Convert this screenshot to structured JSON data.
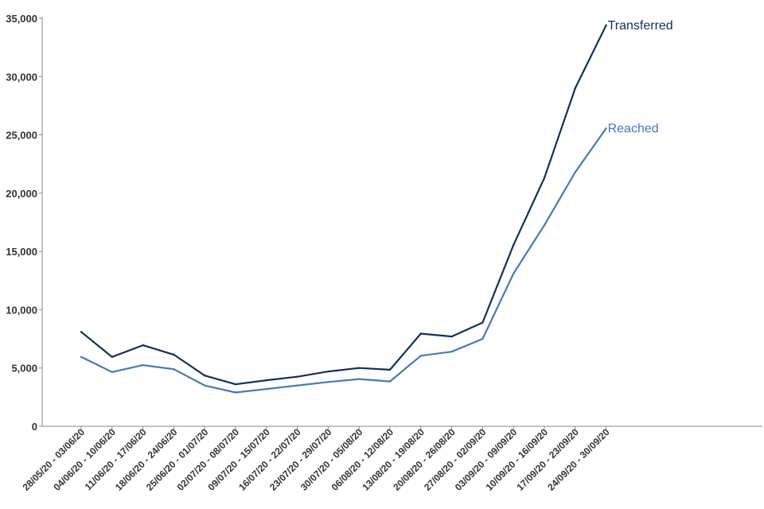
{
  "chart_data": {
    "type": "line",
    "x": [
      "28/05/20 - 03/06/20",
      "04/06/20 - 10/06/20",
      "11/06/20 - 17/06/20",
      "18/06/20 - 24/06/20",
      "25/06/20 - 01/07/20",
      "02/07/20 - 08/07/20",
      "09/07/20 - 15/07/20",
      "16/07/20 - 22/07/20",
      "23/07/20 - 29/07/20",
      "30/07/20 - 05/08/20",
      "06/08/20 - 12/08/20",
      "13/08/20 - 19/08/20",
      "20/08/20 - 26/08/20",
      "27/08/20 - 02/09/20",
      "03/09/20 - 09/09/20",
      "10/09/20 - 16/09/20",
      "17/09/20 - 23/09/20",
      "24/09/20 - 30/09/20"
    ],
    "series": [
      {
        "name": "Transferred",
        "color": "#12305a",
        "values": [
          8100,
          5950,
          6950,
          6150,
          4350,
          3600,
          3950,
          4250,
          4700,
          5000,
          4850,
          7950,
          7700,
          8900,
          15550,
          21300,
          29000,
          34400
        ]
      },
      {
        "name": "Reached",
        "color": "#4a78b8",
        "values": [
          5950,
          4650,
          5250,
          4900,
          3500,
          2900,
          3200,
          3500,
          3800,
          4050,
          3850,
          6050,
          6400,
          7500,
          13100,
          17250,
          21800,
          25550
        ]
      }
    ],
    "yticks": [
      "0",
      "5,000",
      "10,000",
      "15,000",
      "20,000",
      "25,000",
      "30,000",
      "35,000"
    ],
    "ylim": [
      0,
      35000
    ],
    "title": "",
    "xlabel": "",
    "ylabel": "",
    "grid": false,
    "legend": "inline at line ends"
  }
}
